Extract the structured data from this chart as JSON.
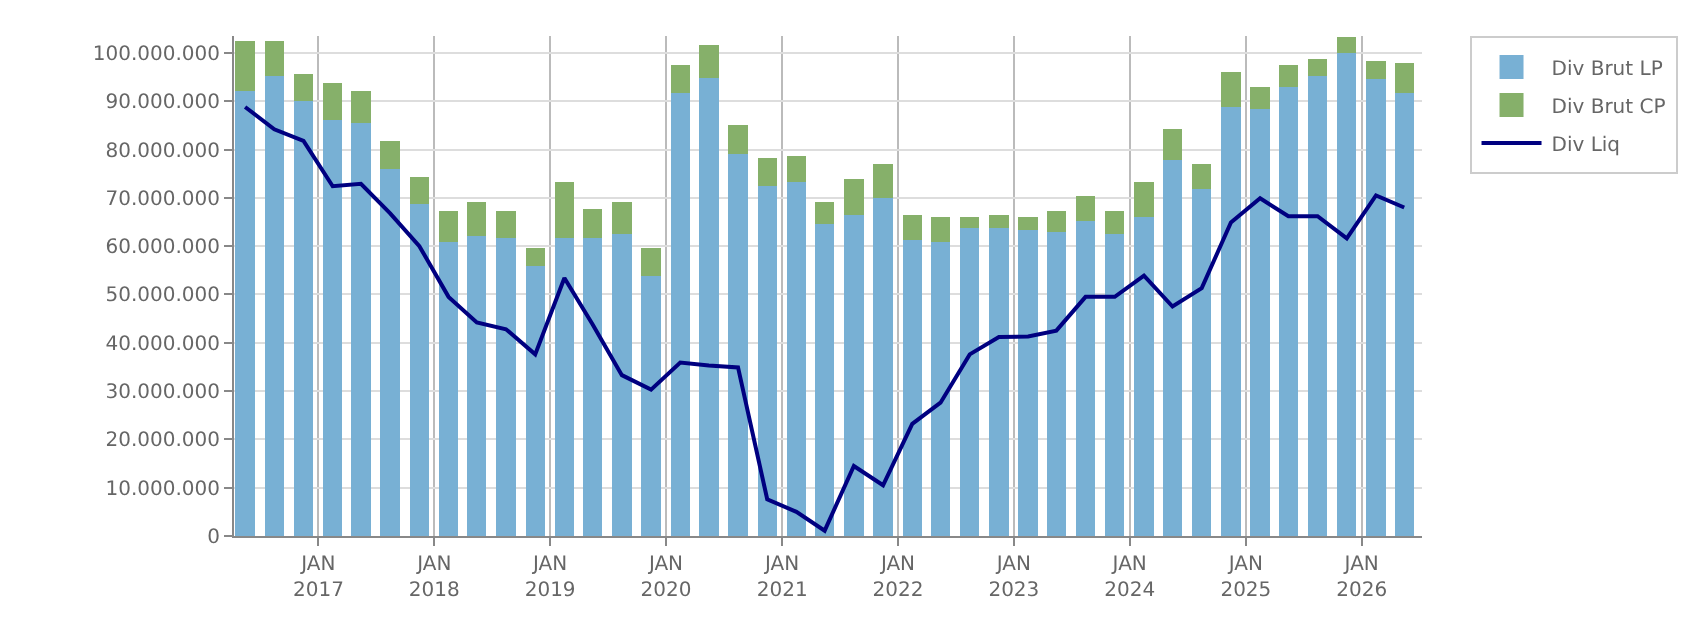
{
  "chart_data": {
    "type": "bar",
    "stacked": true,
    "x": [
      "2016-05-15",
      "2016-08-15",
      "2016-11-15",
      "2017-02-15",
      "2017-05-15",
      "2017-08-15",
      "2017-11-15",
      "2018-02-15",
      "2018-05-15",
      "2018-08-15",
      "2018-11-15",
      "2019-02-15",
      "2019-05-15",
      "2019-08-15",
      "2019-11-15",
      "2020-02-15",
      "2020-05-15",
      "2020-08-15",
      "2020-11-15",
      "2021-02-15",
      "2021-05-15",
      "2021-08-15",
      "2021-11-15",
      "2022-02-15",
      "2022-05-15",
      "2022-08-15",
      "2022-11-15",
      "2023-02-15",
      "2023-05-15",
      "2023-08-15",
      "2023-11-15",
      "2024-02-15",
      "2024-05-15",
      "2024-08-15",
      "2024-11-15",
      "2025-02-15",
      "2025-05-15",
      "2025-08-15",
      "2025-11-15",
      "2026-02-15",
      "2026-05-15"
    ],
    "series": [
      {
        "name": "Div Brut LP",
        "color": "#78b0d4",
        "values": [
          92200000,
          95300000,
          90100000,
          86200000,
          85400000,
          75900000,
          68800000,
          60900000,
          62200000,
          61700000,
          55900000,
          61700000,
          61700000,
          62500000,
          53800000,
          91700000,
          94900000,
          79100000,
          72400000,
          73300000,
          64500000,
          66400000,
          70000000,
          61300000,
          60800000,
          63700000,
          63700000,
          63300000,
          62900000,
          65300000,
          62500000,
          66100000,
          77900000,
          71800000,
          88900000,
          88400000,
          92900000,
          95300000,
          100000000,
          94500000,
          91700000
        ]
      },
      {
        "name": "Div Brut CP",
        "color": "#86b06a",
        "values": [
          10200000,
          7100000,
          5600000,
          7500000,
          6700000,
          5900000,
          5500000,
          6300000,
          7000000,
          5500000,
          3800000,
          11500000,
          5900000,
          6700000,
          5900000,
          5900000,
          6700000,
          5900000,
          5900000,
          5400000,
          4700000,
          7500000,
          7100000,
          5100000,
          5300000,
          2400000,
          2700000,
          2800000,
          4300000,
          5100000,
          4700000,
          7100000,
          6300000,
          5300000,
          7200000,
          4500000,
          4700000,
          3500000,
          3200000,
          3900000,
          6300000
        ]
      },
      {
        "name": "Div Liq",
        "color": "#000080",
        "type": "line",
        "marker": "none",
        "line_style": "solid",
        "values": [
          88800000,
          84200000,
          81800000,
          72400000,
          72900000,
          66800000,
          60000000,
          49500000,
          44200000,
          42800000,
          37600000,
          53400000,
          43800000,
          33300000,
          30300000,
          35900000,
          35300000,
          34900000,
          7600000,
          5000000,
          1100000,
          14500000,
          10500000,
          23200000,
          27600000,
          37600000,
          41200000,
          41300000,
          42500000,
          49500000,
          49500000,
          53900000,
          47500000,
          51300000,
          64900000,
          69900000,
          66200000,
          66200000,
          61600000,
          70500000,
          68000000
        ]
      }
    ],
    "xlim": [
      "2016-04-10",
      "2026-07-10"
    ],
    "xticks": [
      {
        "value": "2017-01-01",
        "label": "JAN\n2017"
      },
      {
        "value": "2018-01-01",
        "label": "JAN\n2018"
      },
      {
        "value": "2019-01-01",
        "label": "JAN\n2019"
      },
      {
        "value": "2020-01-01",
        "label": "JAN\n2020"
      },
      {
        "value": "2021-01-01",
        "label": "JAN\n2021"
      },
      {
        "value": "2022-01-01",
        "label": "JAN\n2022"
      },
      {
        "value": "2023-01-01",
        "label": "JAN\n2023"
      },
      {
        "value": "2024-01-01",
        "label": "JAN\n2024"
      },
      {
        "value": "2025-01-01",
        "label": "JAN\n2025"
      },
      {
        "value": "2026-01-01",
        "label": "JAN\n2026"
      }
    ],
    "ylim": [
      0,
      103500000
    ],
    "yticks": [
      0,
      {
        "value": 10000000,
        "label": "10.000.000"
      },
      {
        "value": 20000000,
        "label": "20.000.000"
      },
      {
        "value": 30000000,
        "label": "30.000.000"
      },
      {
        "value": 40000000,
        "label": "40.000.000"
      },
      {
        "value": 50000000,
        "label": "50.000.000"
      },
      {
        "value": 60000000,
        "label": "60.000.000"
      },
      {
        "value": 70000000,
        "label": "70.000.000"
      },
      {
        "value": 80000000,
        "label": "80.000.000"
      },
      {
        "value": 90000000,
        "label": "90.000.000"
      },
      {
        "value": 100000000,
        "label": "100.000.000"
      }
    ],
    "grid": true,
    "legend": "top right"
  }
}
